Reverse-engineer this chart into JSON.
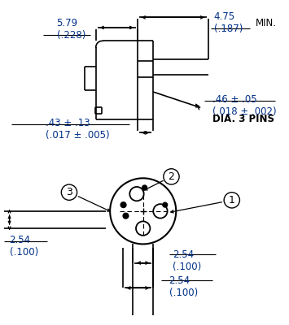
{
  "text_color": "#003087",
  "line_color": "#000000",
  "bg_color": "#ffffff",
  "fig_width": 3.55,
  "fig_height": 4.0,
  "dpi": 100,
  "labels": {
    "top_left_dim": "5.79\n(.228)",
    "top_right_dim": "4.75\n(.187)",
    "top_right_label": "MIN.",
    "pin_dia": ".46 ± .05\n(.018 ± .002)",
    "pin_dia_label": "DIA. 3 PINS",
    "bottom_dim": ".43 ± .13\n(.017 ± .005)",
    "bot_dim1": "2.54\n(.100)",
    "bot_dim2": "2.54\n(.100)",
    "bot_dim3": "2.54\n(.100)"
  }
}
